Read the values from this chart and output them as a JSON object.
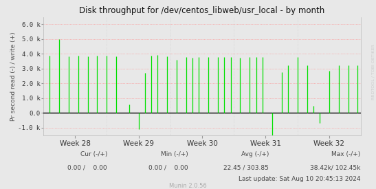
{
  "title": "Disk throughput for /dev/centos_libweb/usr_local - by month",
  "ylabel": "Pr second read (-) / write (+)",
  "yticks": [
    -1000,
    0,
    1000,
    2000,
    3000,
    4000,
    5000,
    6000
  ],
  "ytick_labels": [
    "-1.0 k",
    "0.0",
    "1.0 k",
    "2.0 k",
    "3.0 k",
    "4.0 k",
    "5.0 k",
    "6.0 k"
  ],
  "ylim": [
    -1500,
    6500
  ],
  "xlim": [
    0,
    1
  ],
  "xtick_positions": [
    0.1,
    0.3,
    0.5,
    0.7,
    0.9
  ],
  "xtick_labels": [
    "Week 28",
    "Week 29",
    "Week 30",
    "Week 31",
    "Week 32"
  ],
  "bg_color": "#e8e8e8",
  "plot_bg_color": "#e8e8e8",
  "grid_color": "#ff8888",
  "grid_color_v": "#cccccc",
  "line_color": "#00e000",
  "zero_line_color": "#000000",
  "right_label": "RRDTOOL / TOBI OETIKER",
  "legend_color": "#00aa00",
  "footer_munin": "Munin 2.0.56",
  "spike_positions": [
    0.02,
    0.05,
    0.08,
    0.11,
    0.14,
    0.17,
    0.2,
    0.23,
    0.27,
    0.3,
    0.32,
    0.34,
    0.36,
    0.39,
    0.42,
    0.45,
    0.47,
    0.49,
    0.52,
    0.55,
    0.57,
    0.59,
    0.62,
    0.65,
    0.67,
    0.69,
    0.72,
    0.75,
    0.77,
    0.8,
    0.83,
    0.85,
    0.87,
    0.9,
    0.93,
    0.96,
    0.99
  ],
  "spike_heights": [
    3900,
    5000,
    3850,
    3900,
    3850,
    3900,
    3900,
    3850,
    600,
    -1100,
    2700,
    3900,
    3950,
    3850,
    3600,
    3800,
    3750,
    3800,
    3800,
    3800,
    3800,
    3800,
    3750,
    3800,
    3800,
    3800,
    -1500,
    2750,
    3250,
    3800,
    3250,
    500,
    -700,
    2850,
    3250,
    3250,
    3250
  ]
}
